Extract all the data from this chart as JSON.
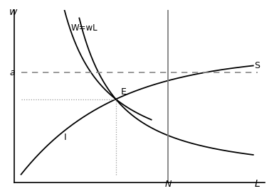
{
  "xlabel": "L",
  "ylabel": "w",
  "xlim": [
    0,
    10
  ],
  "ylim": [
    0,
    10
  ],
  "N_x": 6.2,
  "a_y": 6.5,
  "E_x": 4.0,
  "E_y": 4.8,
  "label_W": "W=wL",
  "label_S": "S",
  "label_I": "I",
  "label_E": "E",
  "label_a": "a",
  "label_N": "N",
  "background_color": "#ffffff",
  "curve_color": "#000000",
  "vline_color": "#808080",
  "dashed_color": "#888888",
  "dotted_color": "#999999"
}
